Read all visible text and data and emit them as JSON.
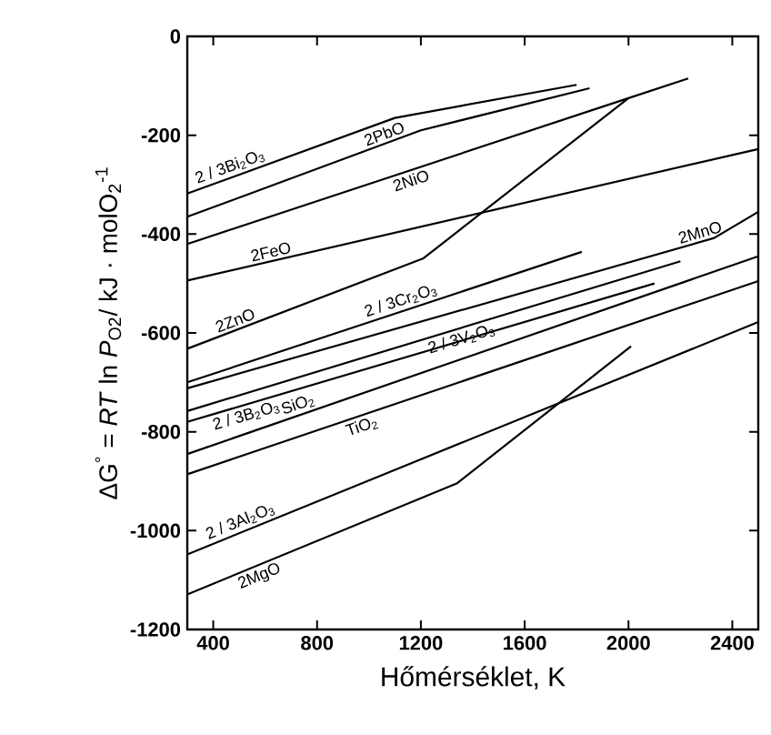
{
  "chart_data": {
    "type": "line",
    "xlabel": "Hőmérséklet, K",
    "ylabel": "ΔG$^{°}$ = *RT* ln *P*$_{O2}$/ kJ · molO$_{2}$$^{-1}$",
    "xlim": [
      300,
      2500
    ],
    "ylim": [
      -1200,
      0
    ],
    "xticks": [
      400,
      800,
      1200,
      1600,
      2000,
      2400
    ],
    "yticks": [
      0,
      -200,
      -400,
      -600,
      -800,
      -1000,
      -1200
    ],
    "grid": false,
    "marker": "none",
    "line_style": "solid",
    "series": [
      {
        "name": "2 / 3Bi$_{2}$O$_{3}$",
        "color": "#000000",
        "x": [
          300,
          1100,
          1800
        ],
        "values": [
          -318,
          -165,
          -98
        ]
      },
      {
        "name": "2PbO",
        "color": "#000000",
        "x": [
          300,
          1200,
          1850
        ],
        "values": [
          -365,
          -190,
          -105
        ]
      },
      {
        "name": "2NiO",
        "color": "#000000",
        "x": [
          300,
          2000
        ],
        "values": [
          -420,
          -125
        ]
      },
      {
        "name": "2FeO",
        "color": "#000000",
        "x": [
          300,
          2500
        ],
        "values": [
          -494,
          -228
        ]
      },
      {
        "name": "2ZnO",
        "color": "#000000",
        "x": [
          300,
          1210,
          2000,
          2230
        ],
        "values": [
          -632,
          -449,
          -125,
          -85
        ]
      },
      {
        "name": "2 / 3Cr$_{2}$O$_{3}$",
        "color": "#000000",
        "x": [
          300,
          1820
        ],
        "values": [
          -700,
          -436
        ]
      },
      {
        "name": "2MnO",
        "color": "#000000",
        "x": [
          300,
          2330,
          2500
        ],
        "values": [
          -712,
          -408,
          -355
        ]
      },
      {
        "name": "2 / 3V$_{2}$O$_{3}$",
        "color": "#000000",
        "x": [
          300,
          2200
        ],
        "values": [
          -758,
          -455
        ]
      },
      {
        "name": "2 / 3B$_{2}$O$_{3}$",
        "color": "#000000",
        "x": [
          300,
          2100
        ],
        "values": [
          -780,
          -500
        ]
      },
      {
        "name": "SiO$_{2}$",
        "color": "#000000",
        "x": [
          300,
          2500
        ],
        "values": [
          -845,
          -445
        ]
      },
      {
        "name": "TiO$_{2}$",
        "color": "#000000",
        "x": [
          300,
          2500
        ],
        "values": [
          -886,
          -495
        ]
      },
      {
        "name": "2 / 3Al$_{2}$O$_{3}$",
        "color": "#000000",
        "x": [
          300,
          2500
        ],
        "values": [
          -1048,
          -578
        ]
      },
      {
        "name": "2MgO",
        "color": "#000000",
        "x": [
          300,
          1340,
          2010
        ],
        "values": [
          -1129,
          -904,
          -627
        ]
      }
    ]
  }
}
